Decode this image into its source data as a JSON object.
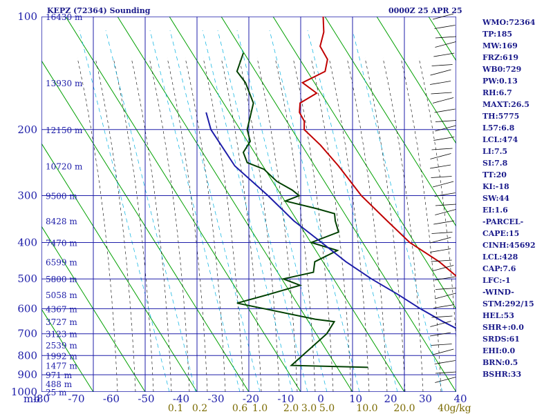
{
  "header": {
    "title": "KEPZ (72364) Sounding",
    "valid_time": "0000Z 25 APR 25"
  },
  "indices": [
    "WMO:72364",
    "TP:185",
    "MW:169",
    "FRZ:619",
    "WB0:729",
    "PW:0.13",
    "RH:6.7",
    "MAXT:26.5",
    "TH:5775",
    "L57:6.8",
    "LCL:474",
    "LI:7.5",
    "SI:7.8",
    "TT:20",
    "KI:-18",
    "SW:44",
    "EI:1.6",
    "-PARCEL-",
    "CAPE:15",
    "CINH:45692",
    "LCL:428",
    "CAP:7.6",
    "LFC:-1",
    "-WIND-",
    "STM:292/15",
    "HEL:53",
    "SHR+:0.0",
    "SRDS:61",
    "EHI:0.0",
    "BRN:0.5",
    "BSHR:33"
  ],
  "colors": {
    "grid": "#1c1ca8",
    "isotherm": "#00a000",
    "temperature": "#c00000",
    "dewpoint": "#004000",
    "parcel": "#1c1ca8",
    "mixing_ratio": "#00b0e0",
    "adiabat": "#000000",
    "mixing_label": "#7a6a00"
  },
  "chart_data": {
    "type": "line",
    "xlabel": "",
    "ylabel": "mb",
    "xlim": [
      -80,
      0
    ],
    "ylim": [
      1000,
      100
    ],
    "y_scale": "log",
    "grid": true,
    "pressure_ticks": [
      "100",
      "200",
      "300",
      "400",
      "500",
      "600",
      "700",
      "800",
      "900",
      "1000"
    ],
    "temperature_ticks": [
      "-80",
      "-70",
      "-60",
      "-50",
      "-40",
      "-30",
      "-20",
      "-10",
      "0",
      "10",
      "20",
      "30",
      "40"
    ],
    "mixing_ratio_labels": [
      "0.1",
      "0.2",
      "0.6",
      "1.0",
      "2.0",
      "3.0",
      "5.0",
      "10.0",
      "20.0",
      "40",
      "g/kg"
    ],
    "height_labels": [
      {
        "p": 100,
        "text": "16430 m"
      },
      {
        "p": 150,
        "text": "13930 m"
      },
      {
        "p": 200,
        "text": "12150 m"
      },
      {
        "p": 250,
        "text": "10720 m"
      },
      {
        "p": 300,
        "text": "9500 m"
      },
      {
        "p": 350,
        "text": "8428 m"
      },
      {
        "p": 400,
        "text": "7470 m"
      },
      {
        "p": 450,
        "text": "6599 m"
      },
      {
        "p": 500,
        "text": "5800 m"
      },
      {
        "p": 550,
        "text": "5058 m"
      },
      {
        "p": 600,
        "text": "4367 m"
      },
      {
        "p": 650,
        "text": "3727 m"
      },
      {
        "p": 700,
        "text": "3123 m"
      },
      {
        "p": 750,
        "text": "2539 m"
      },
      {
        "p": 800,
        "text": "1992 m"
      },
      {
        "p": 850,
        "text": "1477 m"
      },
      {
        "p": 900,
        "text": "971 m"
      },
      {
        "p": 950,
        "text": "488 m"
      },
      {
        "p": 1000,
        "text": "25 m"
      }
    ],
    "series": [
      {
        "points": [
          [
            100,
            -71
          ],
          [
            110,
            -69
          ],
          [
            120,
            -68
          ],
          [
            130,
            -65
          ],
          [
            140,
            -64
          ],
          [
            150,
            -67
          ],
          [
            160,
            -63
          ],
          [
            170,
            -65
          ],
          [
            180,
            -64
          ],
          [
            190,
            -62
          ],
          [
            200,
            -61
          ],
          [
            220,
            -56
          ],
          [
            250,
            -50
          ],
          [
            300,
            -42
          ],
          [
            350,
            -34
          ],
          [
            400,
            -27
          ],
          [
            450,
            -19
          ],
          [
            500,
            -13
          ],
          [
            550,
            -7
          ],
          [
            580,
            -5
          ],
          [
            600,
            -3
          ],
          [
            650,
            2
          ],
          [
            700,
            7
          ],
          [
            800,
            17
          ],
          [
            850,
            23
          ],
          [
            870,
            26.5
          ]
        ]
      },
      {
        "points": [
          [
            125,
            -82
          ],
          [
            140,
            -81
          ],
          [
            150,
            -78
          ],
          [
            170,
            -74
          ],
          [
            200,
            -72
          ],
          [
            215,
            -70
          ],
          [
            230,
            -70
          ],
          [
            245,
            -68
          ],
          [
            255,
            -64
          ],
          [
            275,
            -60
          ],
          [
            290,
            -56
          ],
          [
            300,
            -54
          ],
          [
            310,
            -56
          ],
          [
            325,
            -49
          ],
          [
            335,
            -45
          ],
          [
            350,
            -44
          ],
          [
            375,
            -42
          ],
          [
            400,
            -46
          ],
          [
            420,
            -40
          ],
          [
            450,
            -43
          ],
          [
            480,
            -42
          ],
          [
            500,
            -47
          ],
          [
            520,
            -43
          ],
          [
            550,
            -48
          ],
          [
            580,
            -53
          ],
          [
            640,
            -36
          ],
          [
            650,
            -32
          ],
          [
            700,
            -32
          ],
          [
            850,
            -35
          ],
          [
            860,
            -20
          ]
        ]
      },
      {
        "points": [
          [
            180,
            -82
          ],
          [
            200,
            -79
          ],
          [
            250,
            -70
          ],
          [
            300,
            -60
          ],
          [
            350,
            -52
          ],
          [
            400,
            -44
          ],
          [
            450,
            -37
          ],
          [
            500,
            -30
          ],
          [
            550,
            -23
          ],
          [
            600,
            -17
          ],
          [
            650,
            -11
          ],
          [
            700,
            -5
          ],
          [
            800,
            6
          ],
          [
            850,
            13
          ],
          [
            870,
            16
          ]
        ]
      }
    ]
  }
}
